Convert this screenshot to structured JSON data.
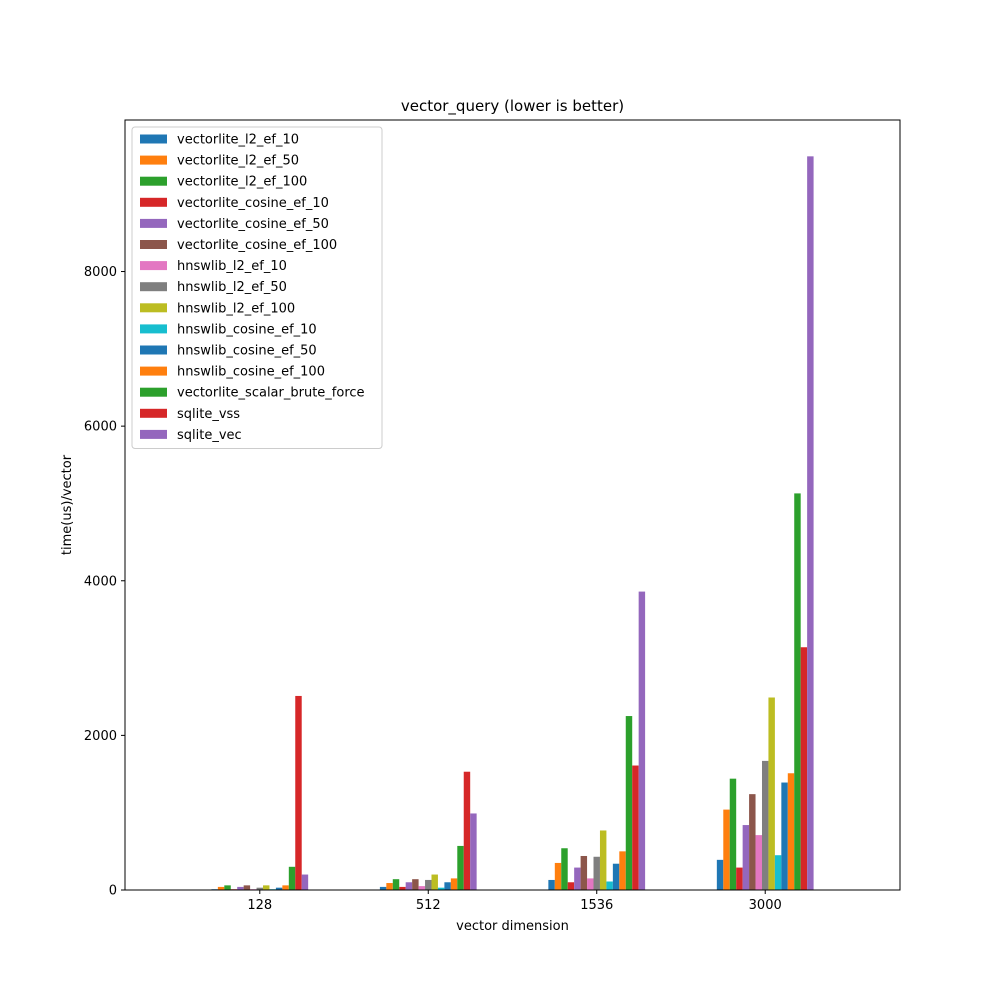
{
  "chart_data": {
    "type": "bar",
    "title": "vector_query (lower is better)",
    "xlabel": "vector dimension",
    "ylabel": "time(us)/vector",
    "ylim": [
      0,
      9960
    ],
    "yticks": [
      0,
      2000,
      4000,
      6000,
      8000
    ],
    "legend_position": "top-left",
    "categories": [
      "128",
      "512",
      "1536",
      "3000"
    ],
    "series": [
      {
        "name": "vectorlite_l2_ef_10",
        "color": "#1f77b4",
        "values": [
          10,
          40,
          130,
          390
        ]
      },
      {
        "name": "vectorlite_l2_ef_50",
        "color": "#ff7f0e",
        "values": [
          40,
          90,
          350,
          1040
        ]
      },
      {
        "name": "vectorlite_l2_ef_100",
        "color": "#2ca02c",
        "values": [
          60,
          140,
          540,
          1440
        ]
      },
      {
        "name": "vectorlite_cosine_ef_10",
        "color": "#d62728",
        "values": [
          10,
          40,
          100,
          290
        ]
      },
      {
        "name": "vectorlite_cosine_ef_50",
        "color": "#9467bd",
        "values": [
          40,
          100,
          290,
          840
        ]
      },
      {
        "name": "vectorlite_cosine_ef_100",
        "color": "#8c564b",
        "values": [
          60,
          140,
          440,
          1240
        ]
      },
      {
        "name": "hnswlib_l2_ef_10",
        "color": "#e377c2",
        "values": [
          10,
          50,
          150,
          710
        ]
      },
      {
        "name": "hnswlib_l2_ef_50",
        "color": "#7f7f7f",
        "values": [
          30,
          130,
          430,
          1670
        ]
      },
      {
        "name": "hnswlib_l2_ef_100",
        "color": "#bcbd22",
        "values": [
          60,
          200,
          770,
          2490
        ]
      },
      {
        "name": "hnswlib_cosine_ef_10",
        "color": "#17becf",
        "values": [
          10,
          30,
          110,
          450
        ]
      },
      {
        "name": "hnswlib_cosine_ef_50",
        "color": "#1f77b4",
        "values": [
          30,
          100,
          340,
          1390
        ]
      },
      {
        "name": "hnswlib_cosine_ef_100",
        "color": "#ff7f0e",
        "values": [
          60,
          150,
          500,
          1510
        ]
      },
      {
        "name": "vectorlite_scalar_brute_force",
        "color": "#2ca02c",
        "values": [
          300,
          570,
          2250,
          5130
        ]
      },
      {
        "name": "sqlite_vss",
        "color": "#d62728",
        "values": [
          2510,
          1530,
          1610,
          3140
        ]
      },
      {
        "name": "sqlite_vec",
        "color": "#9467bd",
        "values": [
          200,
          990,
          3860,
          9490
        ]
      }
    ]
  }
}
